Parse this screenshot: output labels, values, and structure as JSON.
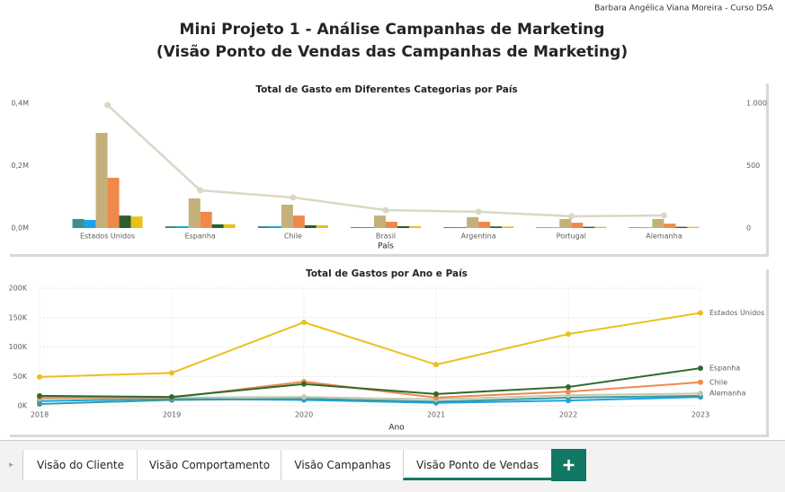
{
  "header": {
    "title": [
      "Mini Projeto 1 - Análise Campanhas de Marketing",
      "(Visão Ponto de Vendas das Campanhas de Marketing)"
    ],
    "author": "Barbara Angélica Viana Moreira - Curso DSA"
  },
  "chart_data": [
    {
      "type": "bar",
      "title": "Total de Gasto em Diferentes Categorias por País",
      "x_label": "País",
      "categories": [
        "Estados Unidos",
        "Espanha",
        "Chile",
        "Brasil",
        "Argentina",
        "Portugal",
        "Alemanha"
      ],
      "series": [
        {
          "color": "#3b8f8f",
          "values": [
            29000,
            6000,
            6000,
            3000,
            3000,
            2000,
            2000
          ]
        },
        {
          "color": "#1aa3e8",
          "values": [
            26000,
            6000,
            6000,
            3000,
            3000,
            2000,
            2000
          ]
        },
        {
          "color": "#c4b07a",
          "values": [
            305000,
            95000,
            75000,
            40000,
            35000,
            29000,
            29000
          ]
        },
        {
          "color": "#f0884a",
          "values": [
            161000,
            52000,
            40000,
            20000,
            20000,
            17000,
            14000
          ]
        },
        {
          "color": "#2e5e2e",
          "values": [
            40000,
            12000,
            9000,
            6000,
            5000,
            4000,
            4000
          ]
        },
        {
          "color": "#e8c21a",
          "values": [
            37000,
            12000,
            9000,
            6000,
            5000,
            4000,
            4000
          ]
        },
        {
          "type": "line",
          "axis": "y2",
          "color": "#d8d8c4",
          "values": [
            986,
            302,
            245,
            144,
            130,
            94,
            101
          ]
        }
      ],
      "ylim": [
        0,
        400000
      ],
      "yticks": [
        {
          "value": 0,
          "label": "0,0M"
        },
        {
          "value": 200000,
          "label": "0,2M"
        },
        {
          "value": 400000,
          "label": "0,4M"
        }
      ],
      "y2lim": [
        0,
        1000
      ],
      "y2ticks": [
        0,
        500,
        {
          "value": 1000,
          "label": "1.000"
        }
      ],
      "grid": false
    },
    {
      "type": "line",
      "title": "Total de Gastos por Ano e País",
      "x_label": "Ano",
      "x": [
        2018,
        2019,
        2020,
        2021,
        2022,
        2023
      ],
      "series": [
        {
          "name": "Estados Unidos",
          "color": "#e8c21a",
          "values": [
            49000,
            56000,
            142000,
            70000,
            122000,
            158000
          ]
        },
        {
          "name": "Espanha",
          "color": "#2e6b2e",
          "values": [
            17000,
            15000,
            37000,
            20000,
            32000,
            64000
          ]
        },
        {
          "name": "Chile",
          "color": "#f0884a",
          "values": [
            14000,
            14000,
            41000,
            14000,
            24000,
            40000
          ]
        },
        {
          "name": "Alemanha",
          "color": "#c2c8b0",
          "values": [
            12000,
            14000,
            15000,
            11000,
            18000,
            21000
          ]
        },
        {
          "color": "#3b9a9a",
          "values": [
            3000,
            10000,
            12000,
            7000,
            14000,
            17000
          ]
        },
        {
          "color": "#1aa3e8",
          "values": [
            8000,
            12000,
            10000,
            5000,
            9000,
            15000
          ]
        }
      ],
      "xlim": [
        2018,
        2023
      ],
      "xticks": [
        2018,
        2019,
        2020,
        2021,
        2022,
        2023
      ],
      "ylim": [
        0,
        200000
      ],
      "yticks": [
        {
          "value": 0,
          "label": "0K"
        },
        {
          "value": 50000,
          "label": "50K"
        },
        {
          "value": 100000,
          "label": "100K"
        },
        {
          "value": 150000,
          "label": "150K"
        },
        {
          "value": 200000,
          "label": "200K"
        }
      ],
      "grid": true
    }
  ],
  "tabs": [
    "Visão do Cliente",
    "Visão Comportamento",
    "Visão Campanhas",
    "Visão Ponto de Vendas"
  ]
}
